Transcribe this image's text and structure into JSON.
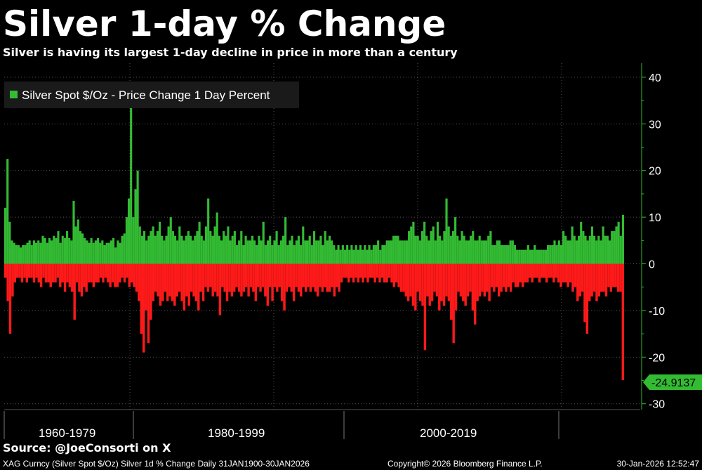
{
  "header": {
    "title": "Silver 1-day % Change",
    "subtitle": "Silver is having its largest 1-day decline in price in more than a century"
  },
  "source": "Source: @JoeConsorti on X",
  "footer": {
    "left": "XAG Curncy (Silver Spot  $/Oz) Silver 1d % Change Daily 31JAN1900-30JAN2026",
    "center": "Copyright© 2026 Bloomberg Finance L.P.",
    "right": "30-Jan-2026 12:52:47"
  },
  "colors": {
    "background": "#000000",
    "positive": "#33bb33",
    "negative": "#ff1a1a",
    "grid": "#555555",
    "axis": "#33bb33",
    "last_value_bg": "#33bb33",
    "legend_bg": "#1a1a1a"
  },
  "chart_data": {
    "type": "bar",
    "title": "Silver 1-day % Change",
    "legend": [
      {
        "label": "Silver Spot $/Oz - Price Change 1 Day Percent",
        "color": "#33bb33"
      }
    ],
    "legend_position": "top-left",
    "y_axis": {
      "position": "right",
      "ylim": [
        -32,
        43
      ],
      "ticks": [
        40,
        30,
        20,
        10,
        0,
        -10,
        -20,
        -30
      ],
      "tick_labels": [
        "40",
        "30",
        "20",
        "10",
        "0",
        "-10",
        "-20",
        "-30"
      ]
    },
    "x_axis": {
      "period_labels": [
        "1960-1979",
        "1980-1999",
        "2000-2019"
      ]
    },
    "last_value": -24.9137,
    "last_value_label": "-24.9137",
    "series": [
      {
        "name": "Silver Spot $/Oz - Price Change 1 Day Percent",
        "note": "Approximate sampled extremes, left to right across the plot",
        "positive": [
          12,
          22.5,
          9,
          5,
          4.5,
          4,
          4,
          3.5,
          4,
          4,
          4.5,
          5,
          4,
          5,
          4.5,
          5,
          4.5,
          6,
          5.5,
          4.5,
          5.5,
          5,
          6,
          5.5,
          7,
          4.5,
          6,
          5.5,
          7,
          5.5,
          5,
          13.5,
          8,
          9.5,
          7,
          6.5,
          5.5,
          5,
          4.5,
          5.5,
          4.5,
          5,
          5.5,
          4.5,
          5,
          4,
          4.5,
          4.5,
          5,
          5.5,
          3.5,
          5,
          4.5,
          6,
          6.5,
          10,
          14,
          36,
          10,
          16,
          20,
          8,
          6,
          7,
          5,
          6,
          7,
          8,
          6,
          7,
          9,
          6,
          5,
          6,
          8,
          10,
          7,
          6,
          5,
          8,
          6,
          5,
          6,
          7,
          6,
          5,
          6,
          7,
          9,
          6,
          5,
          8,
          14,
          7,
          6,
          8,
          11,
          6,
          5,
          7,
          6,
          8,
          5,
          6,
          7,
          4,
          5,
          7,
          4,
          6,
          5,
          5,
          6,
          5,
          4,
          6,
          5,
          9,
          4,
          5,
          6,
          4,
          5,
          7,
          4,
          5,
          6,
          10,
          4,
          5,
          6,
          4,
          5,
          6,
          4,
          8,
          5,
          5,
          6,
          4,
          7,
          5,
          5,
          6,
          4,
          7,
          5,
          6,
          5,
          4,
          3,
          4,
          3,
          4,
          3,
          4,
          3,
          4,
          3,
          4,
          3,
          4,
          3,
          4,
          3,
          4,
          3,
          4,
          4,
          5,
          3,
          4,
          4,
          5,
          5,
          5,
          6,
          6,
          6,
          5,
          5,
          5,
          5,
          7,
          8,
          9,
          6,
          6,
          5,
          7,
          9,
          6,
          5,
          7,
          8,
          5,
          9,
          6,
          5,
          7,
          14,
          8,
          6,
          7,
          10,
          6,
          5,
          7,
          6,
          5,
          5,
          6,
          7,
          5,
          5,
          6,
          5,
          5,
          5,
          6,
          7,
          4,
          4,
          5,
          5,
          4,
          4,
          4,
          4,
          5,
          5,
          4,
          3,
          3,
          3,
          3,
          3,
          4,
          3,
          3,
          4,
          3,
          3,
          3,
          3,
          3,
          4,
          4,
          4,
          5,
          4,
          5,
          4,
          7,
          6,
          5,
          5,
          8,
          6,
          5,
          6,
          9,
          7,
          6,
          5,
          6,
          8,
          6,
          5,
          6,
          5,
          8,
          6,
          6,
          5,
          7,
          7,
          8,
          9,
          6,
          10.5
        ],
        "negative": [
          -3,
          -8,
          -15,
          -7,
          -4,
          -3,
          -3,
          -4,
          -3,
          -4,
          -3,
          -3,
          -4,
          -3,
          -4,
          -5,
          -3,
          -4,
          -4,
          -5,
          -4,
          -4,
          -3,
          -5,
          -4,
          -6,
          -4,
          -5,
          -6,
          -12,
          -4,
          -6,
          -7,
          -5,
          -6,
          -4,
          -4,
          -5,
          -4,
          -4,
          -3,
          -4,
          -3,
          -4,
          -5,
          -4,
          -5,
          -5,
          -4,
          -3,
          -4,
          -3,
          -5,
          -4,
          -5,
          -6,
          -8,
          -15,
          -19,
          -10,
          -17,
          -12,
          -8,
          -6,
          -7,
          -9,
          -8,
          -6,
          -8,
          -7,
          -8,
          -9,
          -7,
          -6,
          -8,
          -10,
          -7,
          -9,
          -6,
          -7,
          -8,
          -10,
          -6,
          -8,
          -5,
          -6,
          -5,
          -7,
          -6,
          -7,
          -11,
          -5,
          -6,
          -8,
          -6,
          -7,
          -6,
          -5,
          -6,
          -7,
          -6,
          -5,
          -7,
          -5,
          -6,
          -8,
          -5,
          -6,
          -5,
          -7,
          -9,
          -5,
          -8,
          -5,
          -6,
          -5,
          -8,
          -10,
          -6,
          -5,
          -6,
          -8,
          -5,
          -6,
          -7,
          -5,
          -6,
          -5,
          -6,
          -5,
          -6,
          -7,
          -5,
          -6,
          -5,
          -6,
          -6,
          -5,
          -7,
          -5,
          -6,
          -4,
          -3,
          -3,
          -4,
          -3,
          -4,
          -3,
          -4,
          -3,
          -4,
          -3,
          -4,
          -3,
          -3,
          -4,
          -3,
          -4,
          -3,
          -4,
          -4,
          -3,
          -4,
          -5,
          -4,
          -5,
          -6,
          -6,
          -7,
          -8,
          -7,
          -9,
          -10,
          -6,
          -8,
          -9,
          -18.5,
          -7,
          -9,
          -8,
          -6,
          -7,
          -10,
          -8,
          -9,
          -7,
          -8,
          -12,
          -17,
          -10,
          -6,
          -7,
          -8,
          -9,
          -7,
          -6,
          -10,
          -13,
          -8,
          -7,
          -6,
          -7,
          -6,
          -8,
          -5,
          -6,
          -5,
          -7,
          -6,
          -5,
          -6,
          -5,
          -6,
          -4,
          -5,
          -5,
          -4,
          -5,
          -4,
          -4,
          -3,
          -4,
          -3,
          -3,
          -4,
          -3,
          -3,
          -4,
          -3,
          -3,
          -4,
          -3,
          -4,
          -5,
          -4,
          -4,
          -5,
          -4,
          -6,
          -5,
          -8,
          -7,
          -6,
          -12.5,
          -15,
          -8,
          -7,
          -6,
          -8,
          -7,
          -6,
          -6,
          -7,
          -5,
          -6,
          -5,
          -5,
          -6,
          -6,
          -24.9137
        ]
      }
    ]
  }
}
